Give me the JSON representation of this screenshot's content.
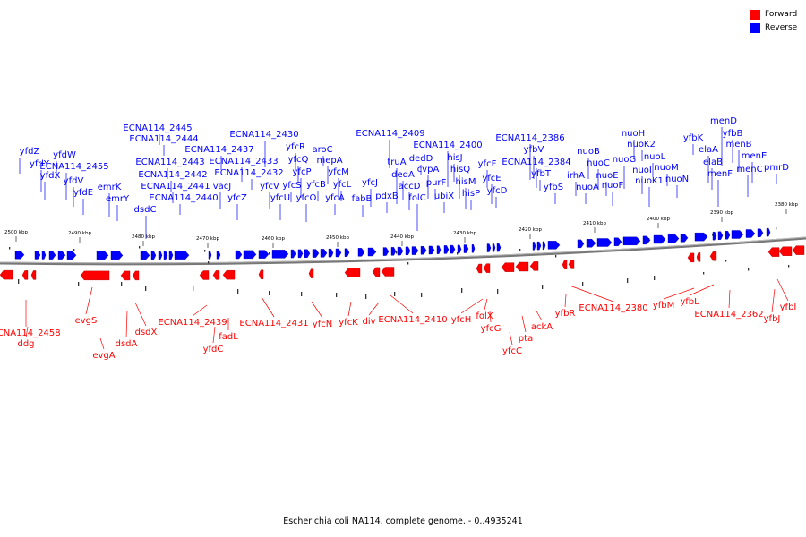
{
  "legend": {
    "forward": {
      "label": "Forward",
      "color": "#ff0000"
    },
    "reverse": {
      "label": "Reverse",
      "color": "#0000ff"
    }
  },
  "caption": "Escherichia coli NA114, complete genome. - 0..4935241",
  "scale_labels": [
    "2500 kbp",
    "2490 kbp",
    "2480 kbp",
    "2470 kbp",
    "2460 kbp",
    "2450 kbp",
    "2440 kbp",
    "2430 kbp",
    "2420 kbp",
    "2410 kbp",
    "2400 kbp",
    "2390 kbp",
    "2380 kbp"
  ],
  "reverse_genes": [
    {
      "name": "yfdZ"
    },
    {
      "name": "yfdY"
    },
    {
      "name": "yfdX"
    },
    {
      "name": "yfdW"
    },
    {
      "name": "ECNA114_2455"
    },
    {
      "name": "yfdV"
    },
    {
      "name": "yfdE"
    },
    {
      "name": "emrK"
    },
    {
      "name": "emrY"
    },
    {
      "name": "dsdC"
    },
    {
      "name": "ECNA114_2445"
    },
    {
      "name": "ECNA114_2444"
    },
    {
      "name": "ECNA114_2443"
    },
    {
      "name": "ECNA114_2442"
    },
    {
      "name": "ECNA114_2441"
    },
    {
      "name": "ECNA114_2440"
    },
    {
      "name": "ECNA114_2437"
    },
    {
      "name": "vacJ"
    },
    {
      "name": "ECNA114_2433"
    },
    {
      "name": "yfcZ"
    },
    {
      "name": "ECNA114_2430"
    },
    {
      "name": "ECNA114_2432"
    },
    {
      "name": "yfcV"
    },
    {
      "name": "yfcU"
    },
    {
      "name": "yfcR"
    },
    {
      "name": "yfcQ"
    },
    {
      "name": "yfcP"
    },
    {
      "name": "yfcS"
    },
    {
      "name": "yfcO"
    },
    {
      "name": "aroC"
    },
    {
      "name": "mepA"
    },
    {
      "name": "yfcB"
    },
    {
      "name": "yfcM"
    },
    {
      "name": "yfcL"
    },
    {
      "name": "yfcA"
    },
    {
      "name": "fabB"
    },
    {
      "name": "yfcJ"
    },
    {
      "name": "ECNA114_2409"
    },
    {
      "name": "truA"
    },
    {
      "name": "pdxB"
    },
    {
      "name": "dedA"
    },
    {
      "name": "accD"
    },
    {
      "name": "dedD"
    },
    {
      "name": "cvpA"
    },
    {
      "name": "folC"
    },
    {
      "name": "purF"
    },
    {
      "name": "ECNA114_2400"
    },
    {
      "name": "hisJ"
    },
    {
      "name": "ubiX"
    },
    {
      "name": "hisQ"
    },
    {
      "name": "hisM"
    },
    {
      "name": "hisP"
    },
    {
      "name": "yfcF"
    },
    {
      "name": "yfcE"
    },
    {
      "name": "yfcD"
    },
    {
      "name": "ECNA114_2386"
    },
    {
      "name": "yfbV"
    },
    {
      "name": "ECNA114_2384"
    },
    {
      "name": "yfbT"
    },
    {
      "name": "yfbS"
    },
    {
      "name": "irhA"
    },
    {
      "name": "nuoA"
    },
    {
      "name": "nuoB"
    },
    {
      "name": "nuoC"
    },
    {
      "name": "nuoE"
    },
    {
      "name": "nuoF"
    },
    {
      "name": "nuoG"
    },
    {
      "name": "nuoH"
    },
    {
      "name": "nuoK2"
    },
    {
      "name": "nuoL"
    },
    {
      "name": "nuoI"
    },
    {
      "name": "nuoK1"
    },
    {
      "name": "nuoM"
    },
    {
      "name": "nuoN"
    },
    {
      "name": "yfbK"
    },
    {
      "name": "elaA"
    },
    {
      "name": "elaB"
    },
    {
      "name": "menD"
    },
    {
      "name": "yfbB"
    },
    {
      "name": "menF"
    },
    {
      "name": "menB"
    },
    {
      "name": "menE"
    },
    {
      "name": "menC"
    },
    {
      "name": "pmrD"
    }
  ],
  "forward_genes": [
    {
      "name": "ECNA114_2458"
    },
    {
      "name": "ddg"
    },
    {
      "name": "evgS"
    },
    {
      "name": "evgA"
    },
    {
      "name": "dsdA"
    },
    {
      "name": "dsdX"
    },
    {
      "name": "ECNA114_2439"
    },
    {
      "name": "yfdC"
    },
    {
      "name": "fadL"
    },
    {
      "name": "ECNA114_2431"
    },
    {
      "name": "yfcN"
    },
    {
      "name": "yfcK"
    },
    {
      "name": "div"
    },
    {
      "name": "ECNA114_2410"
    },
    {
      "name": "yfcH"
    },
    {
      "name": "folX"
    },
    {
      "name": "yfcG"
    },
    {
      "name": "yfcC"
    },
    {
      "name": "pta"
    },
    {
      "name": "ackA"
    },
    {
      "name": "yfbR"
    },
    {
      "name": "ECNA114_2380"
    },
    {
      "name": "yfbM"
    },
    {
      "name": "yfbL"
    },
    {
      "name": "ECNA114_2362"
    },
    {
      "name": "yfbJ"
    },
    {
      "name": "yfbI"
    }
  ]
}
